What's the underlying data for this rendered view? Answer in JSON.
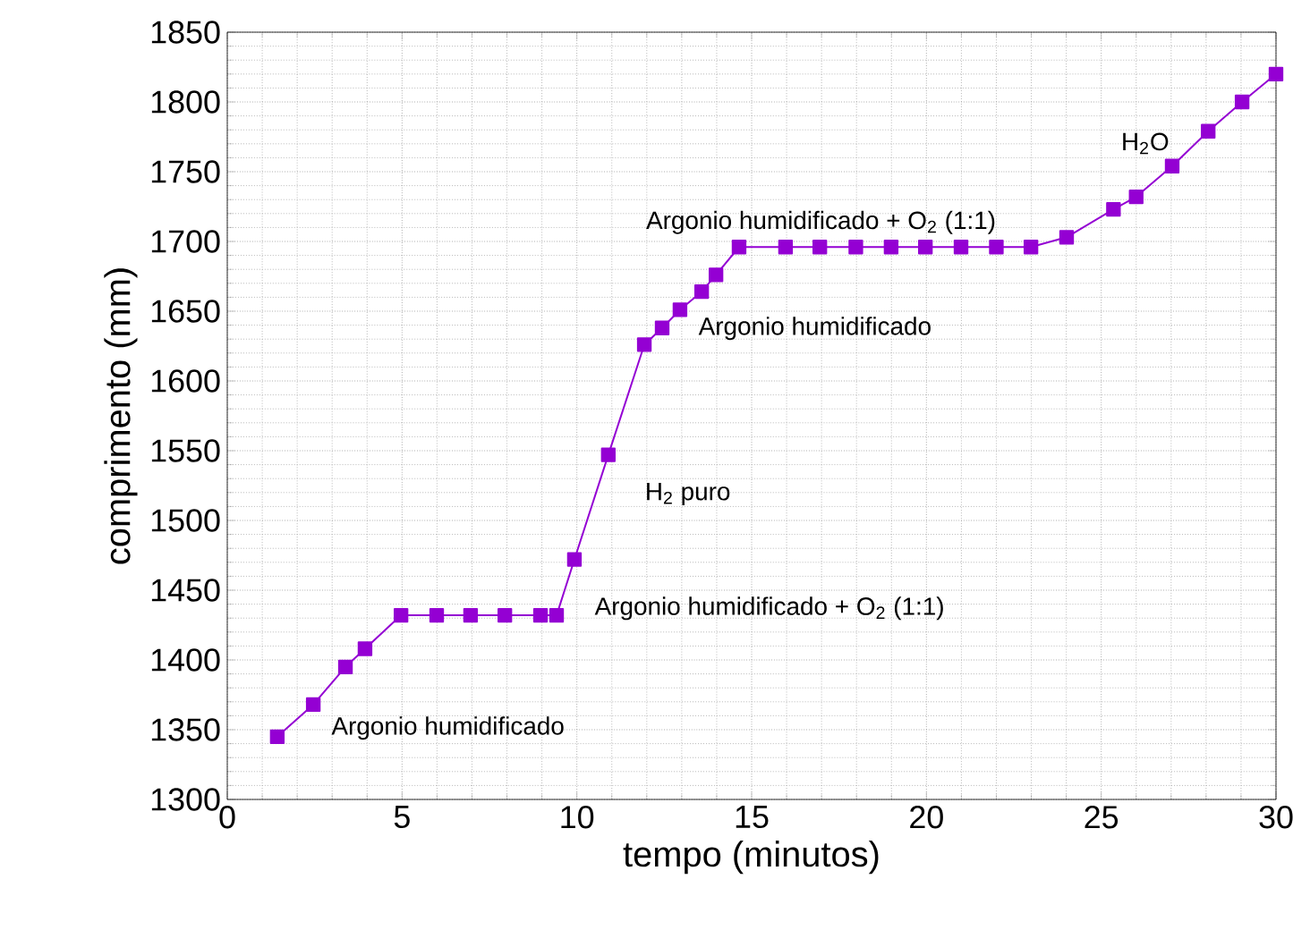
{
  "chart_data": {
    "type": "line",
    "xlabel": "tempo (minutos)",
    "ylabel": "comprimento (mm)",
    "x": [
      1.43,
      2.46,
      3.38,
      3.94,
      4.97,
      5.99,
      6.96,
      7.94,
      8.96,
      9.42,
      9.93,
      10.9,
      11.93,
      12.44,
      12.95,
      13.57,
      13.98,
      14.64,
      15.97,
      16.95,
      17.98,
      18.99,
      19.97,
      20.99,
      22.0,
      22.99,
      24.01,
      25.35,
      26.0,
      27.03,
      28.06,
      29.03,
      30.0
    ],
    "series": [
      {
        "color": "#9400d3",
        "values": [
          1345,
          1368,
          1395,
          1408,
          1432,
          1432,
          1432,
          1432,
          1432,
          1432,
          1472,
          1547,
          1626,
          1638,
          1651,
          1664,
          1676,
          1696,
          1696,
          1696,
          1696,
          1696,
          1696,
          1696,
          1696,
          1696,
          1703,
          1723,
          1732,
          1754,
          1779,
          1800,
          1820
        ]
      }
    ],
    "xlim": [
      0,
      30
    ],
    "ylim": [
      1300,
      1850
    ],
    "xticks": [
      0,
      5,
      10,
      15,
      20,
      25,
      30
    ],
    "yticks": [
      1300,
      1350,
      1400,
      1450,
      1500,
      1550,
      1600,
      1650,
      1700,
      1750,
      1800,
      1850
    ],
    "grid": true,
    "marker": "square",
    "line_style": "solid",
    "annotations": [
      "Argonio humidificado",
      "Argonio humidificado + O$_{2}$ (1:1)",
      "H$_{2}$ puro",
      "Argonio humidificado",
      "Argonio humidificado + O$_{2}$ (1:1)",
      "H$_{2}$O"
    ]
  }
}
